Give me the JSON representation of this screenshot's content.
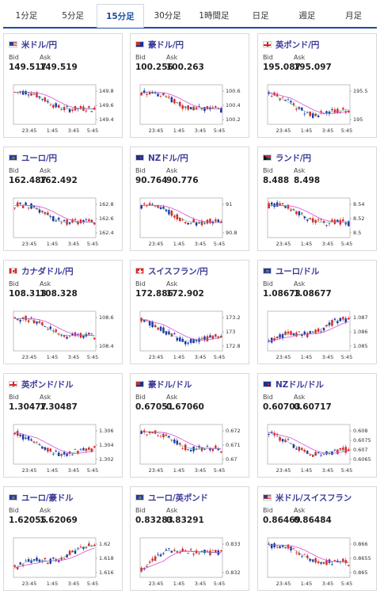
{
  "tabs": [
    {
      "label": "1分足",
      "active": false
    },
    {
      "label": "5分足",
      "active": false
    },
    {
      "label": "15分足",
      "active": true
    },
    {
      "label": "30分足",
      "active": false
    },
    {
      "label": "1時間足",
      "active": false
    },
    {
      "label": "日足",
      "active": false
    },
    {
      "label": "週足",
      "active": false
    },
    {
      "label": "月足",
      "active": false
    }
  ],
  "labels": {
    "bid": "Bid",
    "ask": "Ask"
  },
  "colors": {
    "up": "#e02020",
    "down": "#1a2fa8",
    "ma": "#d050d0",
    "ma2": "#33aa88"
  },
  "cards": [
    {
      "pair": "米ドル/円",
      "flag": "us",
      "bid": "149.517",
      "ask": "149.519",
      "ticks": [
        "149.8",
        "149.6",
        "149.4"
      ],
      "x": [
        "23:45",
        "1:45",
        "3:45",
        "5:45"
      ],
      "trend": "down"
    },
    {
      "pair": "豪ドル/円",
      "flag": "au",
      "bid": "100.256",
      "ask": "100.263",
      "ticks": [
        "100.6",
        "100.4",
        "100.2"
      ],
      "x": [
        "23:45",
        "1:45",
        "3:45",
        "5:45"
      ],
      "trend": "down"
    },
    {
      "pair": "英ポンド/円",
      "flag": "uk",
      "bid": "195.087",
      "ask": "195.097",
      "ticks": [
        "195.5",
        "195"
      ],
      "x": [
        "23:45",
        "1:45",
        "3:45",
        "5:45"
      ],
      "trend": "vdown"
    },
    {
      "pair": "ユーロ/円",
      "flag": "eu",
      "bid": "162.487",
      "ask": "162.492",
      "ticks": [
        "162.8",
        "162.6",
        "162.4"
      ],
      "x": [
        "23:45",
        "1:45",
        "3:45",
        "5:45"
      ],
      "trend": "down"
    },
    {
      "pair": "NZドル/円",
      "flag": "nz",
      "bid": "90.764",
      "ask": "90.776",
      "ticks": [
        "91",
        "90.8"
      ],
      "x": [
        "23:45",
        "1:45",
        "3:45",
        "5:45"
      ],
      "trend": "down"
    },
    {
      "pair": "ランド/円",
      "flag": "za",
      "bid": "8.488",
      "ask": "8.498",
      "ticks": [
        "8.54",
        "8.52",
        "8.5"
      ],
      "x": [
        "23:45",
        "1:45",
        "3:45",
        "5:45"
      ],
      "trend": "down"
    },
    {
      "pair": "カナダドル/円",
      "flag": "ca",
      "bid": "108.313",
      "ask": "108.328",
      "ticks": [
        "108.6",
        "108.4"
      ],
      "x": [
        "23:45",
        "1:45",
        "3:45",
        "5:45"
      ],
      "trend": "down"
    },
    {
      "pair": "スイスフラン/円",
      "flag": "ch",
      "bid": "172.886",
      "ask": "172.902",
      "ticks": [
        "173.2",
        "173",
        "172.8"
      ],
      "x": [
        "23:45",
        "1:45",
        "3:45",
        "5:45"
      ],
      "trend": "vdown"
    },
    {
      "pair": "ユーロ/ドル",
      "flag": "eu",
      "bid": "1.08673",
      "ask": "1.08677",
      "ticks": [
        "1.087",
        "1.086",
        "1.085"
      ],
      "x": [
        "23:45",
        "1:45",
        "3:45",
        "5:45"
      ],
      "trend": "up"
    },
    {
      "pair": "英ポンド/ドル",
      "flag": "uk",
      "bid": "1.30477",
      "ask": "1.30487",
      "ticks": [
        "1.306",
        "1.304",
        "1.302"
      ],
      "x": [
        "23:45",
        "1:45",
        "3:45",
        "5:45"
      ],
      "trend": "vdown"
    },
    {
      "pair": "豪ドル/ドル",
      "flag": "au",
      "bid": "0.67051",
      "ask": "0.67060",
      "ticks": [
        "0.672",
        "0.671",
        "0.67"
      ],
      "x": [
        "23:45",
        "1:45",
        "3:45",
        "5:45"
      ],
      "trend": "down"
    },
    {
      "pair": "NZドル/ドル",
      "flag": "nz",
      "bid": "0.60703",
      "ask": "0.60717",
      "ticks": [
        "0.608",
        "0.6075",
        "0.607",
        "0.6065"
      ],
      "x": [
        "23:45",
        "1:45",
        "3:45",
        "5:45"
      ],
      "trend": "vdown"
    },
    {
      "pair": "ユーロ/豪ドル",
      "flag": "eu",
      "bid": "1.62055",
      "ask": "1.62069",
      "ticks": [
        "1.62",
        "1.618",
        "1.616"
      ],
      "x": [
        "23:45",
        "1:45",
        "3:45",
        "5:45"
      ],
      "trend": "up"
    },
    {
      "pair": "ユーロ/英ポンド",
      "flag": "eu",
      "bid": "0.83283",
      "ask": "0.83291",
      "ticks": [
        "0.833",
        "0.832"
      ],
      "x": [
        "23:45",
        "1:45",
        "3:45",
        "5:45"
      ],
      "trend": "vup"
    },
    {
      "pair": "米ドル/スイスフラン",
      "flag": "us",
      "bid": "0.86469",
      "ask": "0.86484",
      "ticks": [
        "0.866",
        "0.8655",
        "0.865"
      ],
      "x": [
        "23:45",
        "1:45",
        "3:45",
        "5:45"
      ],
      "trend": "down"
    }
  ]
}
